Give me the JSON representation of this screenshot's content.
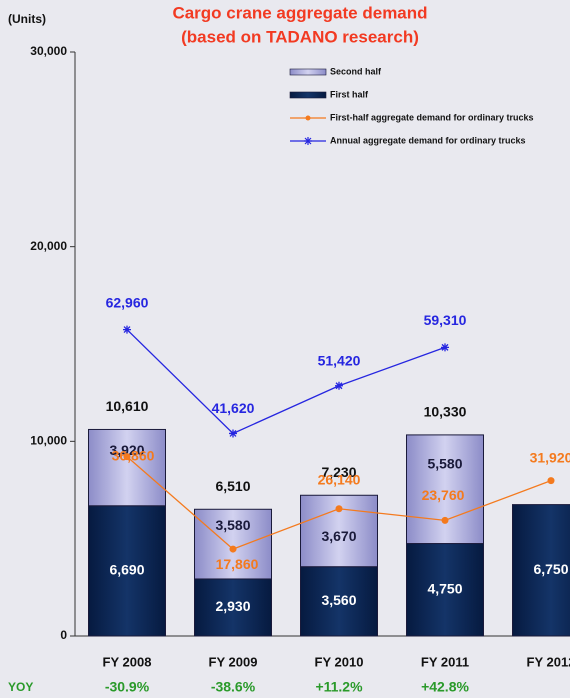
{
  "chart_data": {
    "type": "bar",
    "title": [
      "Cargo crane aggregate demand",
      "(based on TADANO research)"
    ],
    "y_label": "(Units)",
    "categories": [
      "FY 2008",
      "FY 2009",
      "FY 2010",
      "FY 2011",
      "FY 2012"
    ],
    "series": [
      {
        "name": "Second half",
        "color": "#b4b4e2",
        "values": [
          3920,
          3580,
          3670,
          5580,
          null
        ],
        "value_labels": [
          "3,920",
          "3,580",
          "3,670",
          "5,580",
          null
        ]
      },
      {
        "name": "First half",
        "color": "#0c2654",
        "values": [
          6690,
          2930,
          3560,
          4750,
          6750
        ],
        "value_labels": [
          "6,690",
          "2,930",
          "3,560",
          "4,750",
          "6,750"
        ]
      },
      {
        "name": "First-half aggregate demand for ordinary trucks",
        "type": "line",
        "axis": "y2",
        "color": "#f47a1e",
        "values": [
          36860,
          17860,
          26140,
          23760,
          31920
        ],
        "value_labels": [
          "36,860",
          "17,860",
          "26,140",
          "23,760",
          "31,920"
        ]
      },
      {
        "name": "Annual aggregate demand for ordinary trucks",
        "type": "line",
        "axis": "y2",
        "color": "#2626e0",
        "values": [
          62960,
          41620,
          51420,
          59310,
          null
        ],
        "value_labels": [
          "62,960",
          "41,620",
          "51,420",
          "59,310",
          null
        ]
      }
    ],
    "totals": {
      "values": [
        10610,
        6510,
        7230,
        10330,
        null
      ],
      "value_labels": [
        "10,610",
        "6,510",
        "7,230",
        "10,330",
        null
      ]
    },
    "yoy": {
      "label": "YOY",
      "values": [
        -30.9,
        -38.6,
        11.2,
        42.8
      ],
      "value_labels": [
        "-30.9%",
        "-38.6%",
        "+11.2%",
        "+42.8%"
      ]
    },
    "ylim": [
      0,
      30000
    ],
    "yticks": [
      0,
      {
        "value": 10000,
        "label": "10,000"
      },
      {
        "value": 20000,
        "label": "20,000"
      },
      {
        "value": 30000,
        "label": "30,000"
      }
    ],
    "y2lim": [
      0,
      120000
    ]
  }
}
